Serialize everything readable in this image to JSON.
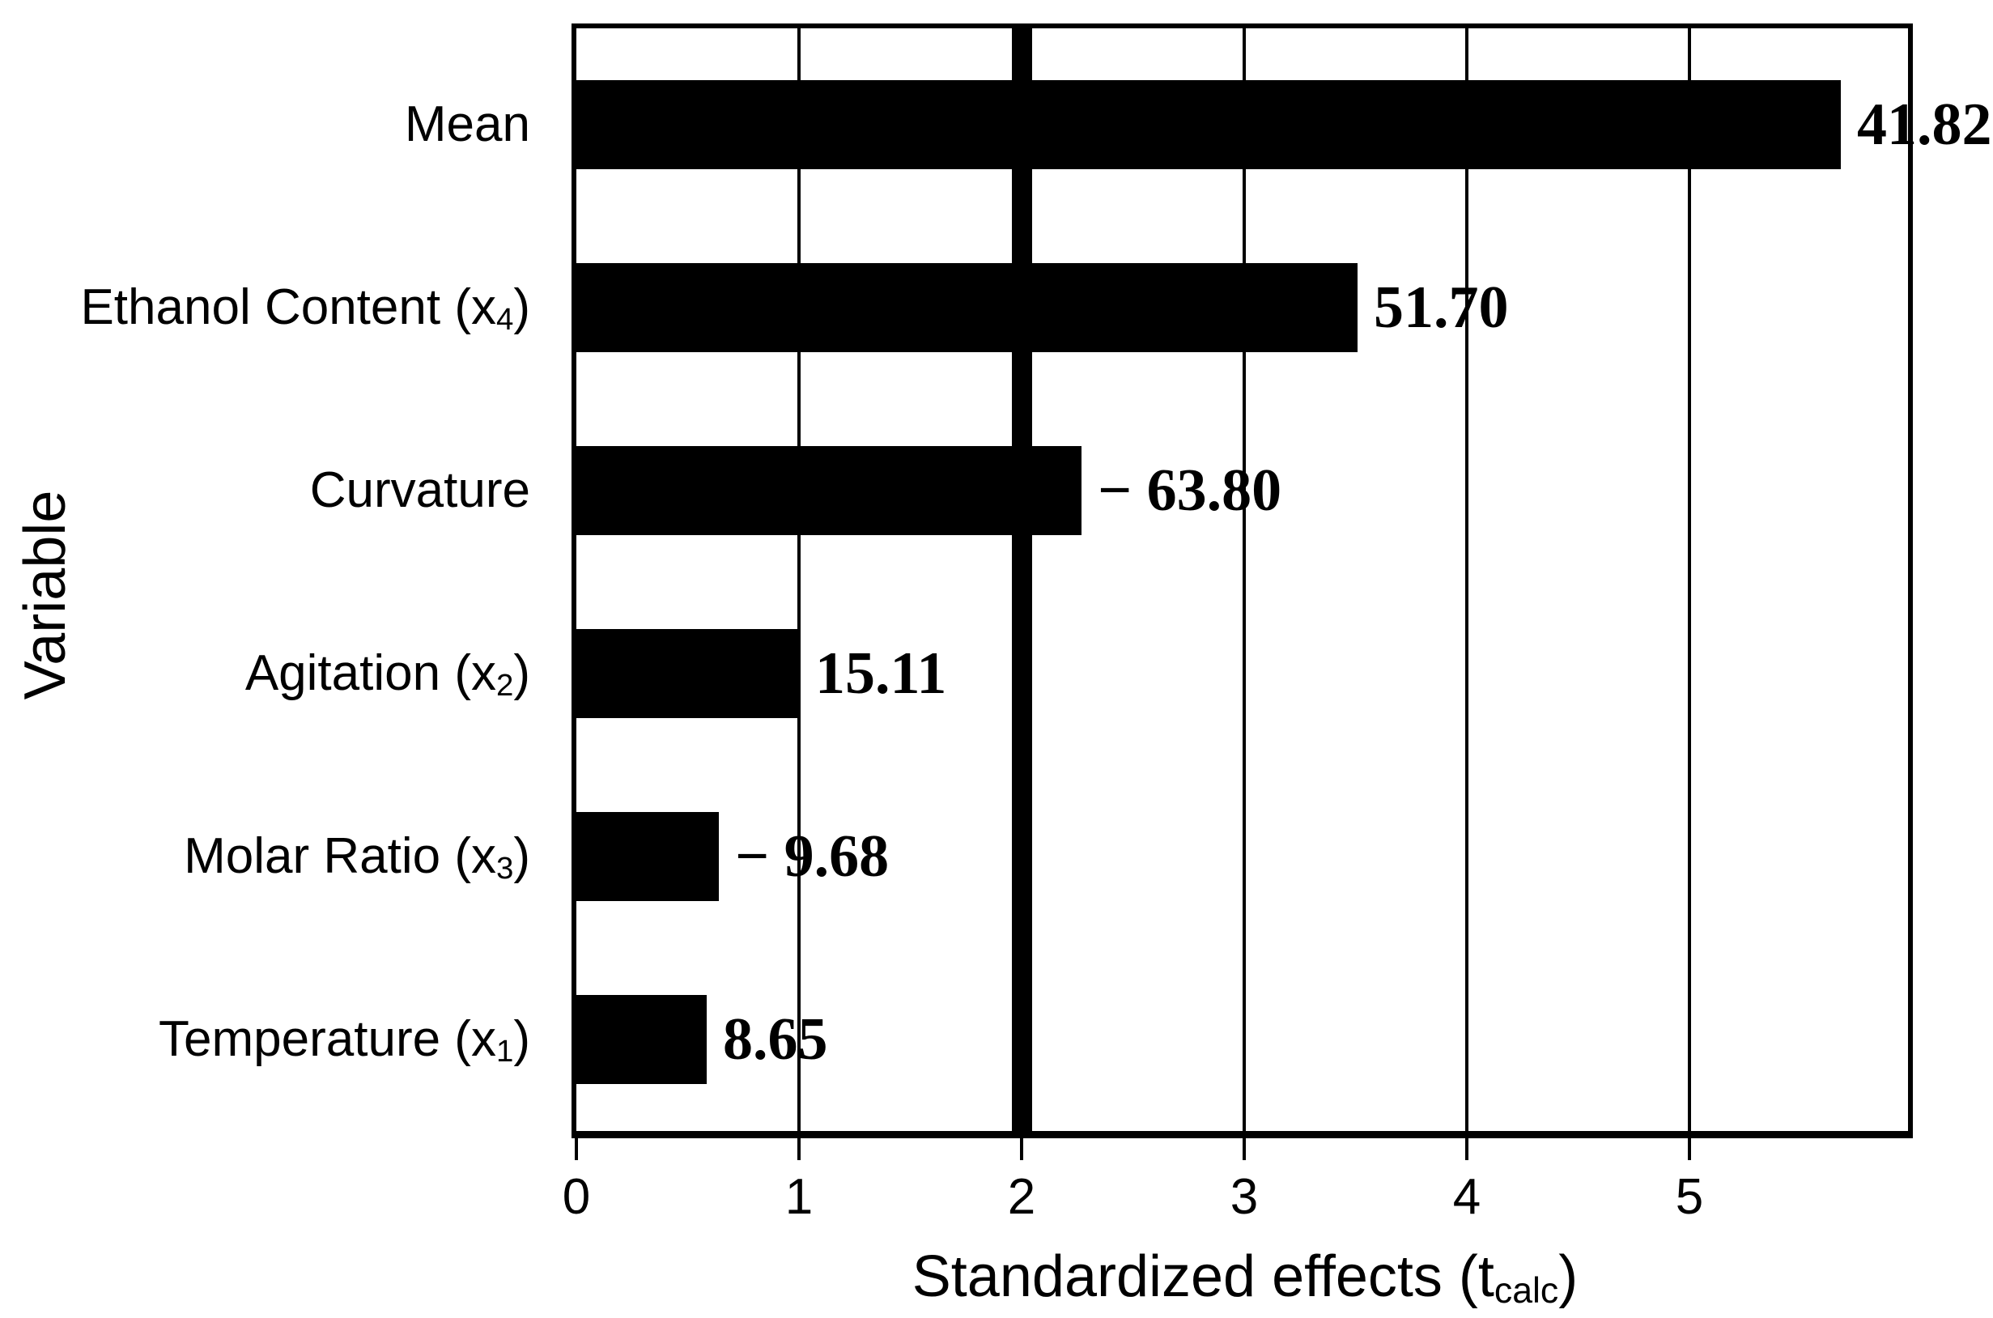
{
  "figure": {
    "background": "#ffffff",
    "ink": "#000000"
  },
  "chart_data": {
    "type": "bar",
    "orientation": "horizontal",
    "title": "",
    "xlabel": {
      "pre": "Standardized effects (t",
      "sub": "calc",
      "post": ")"
    },
    "xlabel_plain": "Standardized effects (tcalc)",
    "ylabel": "Variable",
    "x_ticks": [
      "0",
      "1",
      "2",
      "3",
      "4",
      "5"
    ],
    "xlim": [
      0,
      5.98
    ],
    "grid": true,
    "legend": false,
    "bar_color": "#000000",
    "significance_line_x": 2.0,
    "categories": [
      {
        "pre": "Mean",
        "sub": "",
        "post": "",
        "value_label": "41.82",
        "value": 41.82,
        "bar_length_axis_units": 5.68
      },
      {
        "pre": "Ethanol Content (x",
        "sub": "4",
        "post": ")",
        "value_label": "51.70",
        "value": 51.7,
        "bar_length_axis_units": 3.51
      },
      {
        "pre": "Curvature",
        "sub": "",
        "post": "",
        "value_label": "− 63.80",
        "value": -63.8,
        "bar_length_axis_units": 2.27
      },
      {
        "pre": "Agitation (x",
        "sub": "2",
        "post": ")",
        "value_label": "15.11",
        "value": 15.11,
        "bar_length_axis_units": 1.0
      },
      {
        "pre": "Molar Ratio (x",
        "sub": "3",
        "post": ")",
        "value_label": "− 9.68",
        "value": -9.68,
        "bar_length_axis_units": 0.64
      },
      {
        "pre": "Temperature (x",
        "sub": "1",
        "post": ")",
        "value_label": "8.65",
        "value": 8.65,
        "bar_length_axis_units": 0.585
      }
    ]
  }
}
